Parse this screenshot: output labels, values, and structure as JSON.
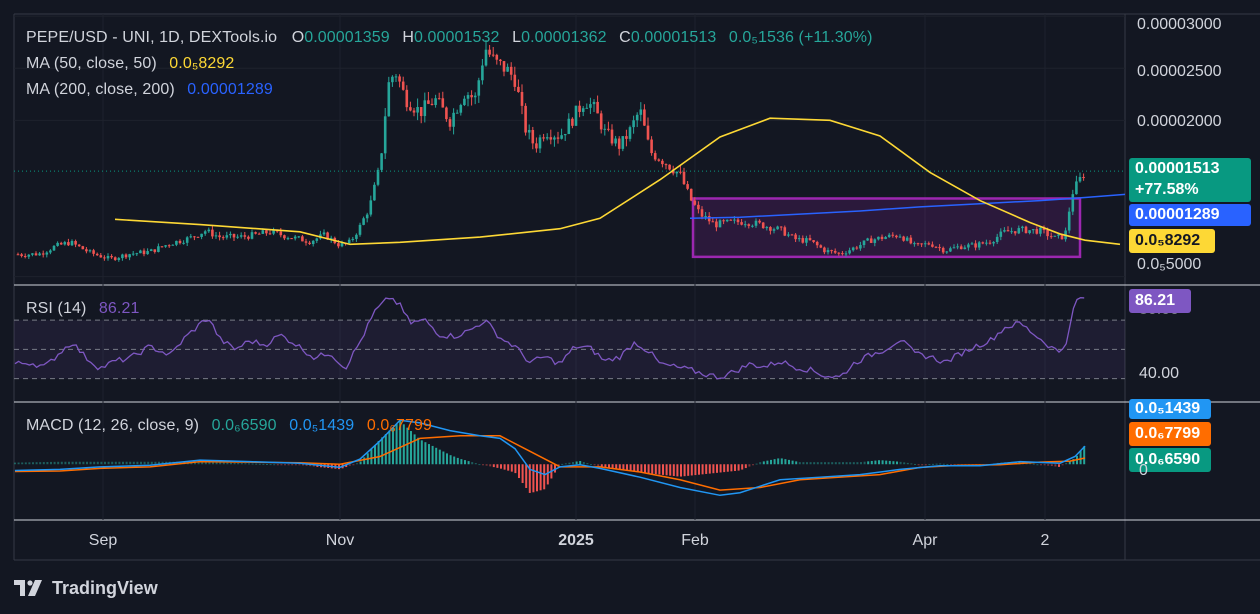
{
  "header": {
    "symbol": "PEPE/USD - UNI, 1D, DEXTools.io",
    "open_label": "O",
    "open": "0.00001359",
    "high_label": "H",
    "high": "0.00001532",
    "low_label": "L",
    "low": "0.00001362",
    "close_label": "C",
    "close": "0.00001513",
    "change": "0.0₅1536 (+11.30%)",
    "ma50_label": "MA (50, close, 50)",
    "ma50_value": "0.0₅8292",
    "ma200_label": "MA (200, close, 200)",
    "ma200_value": "0.00001289"
  },
  "price_axis": {
    "ticks": [
      "0.00003000",
      "0.00002500",
      "0.00002000",
      "0.0₅5000"
    ],
    "last_price": "0.00001513",
    "last_change": "+77.58%",
    "ma200_badge": "0.00001289",
    "ma50_badge": "0.0₅8292"
  },
  "rsi": {
    "label": "RSI (14)",
    "value": "86.21",
    "axis_top": "80.00",
    "axis_low": "40.00",
    "badge": "86.21"
  },
  "macd": {
    "label": "MACD (12, 26, close, 9)",
    "hist": "0.0₆6590",
    "macd": "0.0₅1439",
    "signal": "0.0₆7799",
    "badge_macd": "0.0₅1439",
    "badge_signal": "0.0₆7799",
    "badge_hist": "0.0₆6590",
    "axis_zero": "0"
  },
  "time_axis": {
    "labels": [
      "Sep",
      "Nov",
      "2025",
      "Feb",
      "Apr",
      "2"
    ]
  },
  "footer": {
    "brand": "TradingView"
  },
  "colors": {
    "up": "#26a69a",
    "down": "#ef5350",
    "ma50": "#fdd835",
    "ma200": "#2962ff",
    "rsi": "#7e57c2",
    "macd": "#2196f3",
    "signal": "#ff6d00",
    "box": "#9c27b0",
    "last_price_bg": "#089981",
    "ma200_bg": "#2962ff",
    "ma50_bg": "#fdd835"
  },
  "chart_data": {
    "type": "candlestick",
    "title": "PEPE/USD - UNI, 1D, DEXTools.io",
    "interval": "1D",
    "x_ticks": [
      "Sep",
      "Nov",
      "2025",
      "Feb",
      "Apr",
      "2"
    ],
    "price_range": [
      4.2e-06,
      3.02e-05
    ],
    "ohlc_last": {
      "open": 1.359e-05,
      "high": 1.532e-05,
      "low": 1.362e-05,
      "close": 1.513e-05
    },
    "change_pct": 11.3,
    "price_path": [
      [
        0,
        7.6e-06
      ],
      [
        20,
        7.1e-06
      ],
      [
        40,
        7.2e-06
      ],
      [
        55,
        7.9e-06
      ],
      [
        70,
        8.3e-06
      ],
      [
        90,
        7.3e-06
      ],
      [
        110,
        6.7e-06
      ],
      [
        130,
        7.2e-06
      ],
      [
        150,
        7.4e-06
      ],
      [
        170,
        8.2e-06
      ],
      [
        190,
        8.7e-06
      ],
      [
        205,
        9.4e-06
      ],
      [
        220,
        8.8e-06
      ],
      [
        240,
        8.8e-06
      ],
      [
        255,
        9e-06
      ],
      [
        270,
        9.3e-06
      ],
      [
        290,
        8.8e-06
      ],
      [
        310,
        8.4e-06
      ],
      [
        325,
        9e-06
      ],
      [
        340,
        8e-06
      ],
      [
        350,
        8.3e-06
      ],
      [
        360,
        9.8e-06
      ],
      [
        370,
        1.18e-05
      ],
      [
        380,
        1.56e-05
      ],
      [
        388,
        2.33e-05
      ],
      [
        395,
        2.48e-05
      ],
      [
        405,
        2.22e-05
      ],
      [
        420,
        2.08e-05
      ],
      [
        435,
        2.2e-05
      ],
      [
        450,
        2e-05
      ],
      [
        465,
        2.28e-05
      ],
      [
        475,
        2.2e-05
      ],
      [
        485,
        2.7e-05
      ],
      [
        495,
        2.55e-05
      ],
      [
        505,
        2.5e-05
      ],
      [
        515,
        2.4e-05
      ],
      [
        525,
        1.93e-05
      ],
      [
        535,
        1.75e-05
      ],
      [
        545,
        1.9e-05
      ],
      [
        560,
        1.85e-05
      ],
      [
        570,
        1.98e-05
      ],
      [
        585,
        2.2e-05
      ],
      [
        595,
        2.1e-05
      ],
      [
        605,
        1.88e-05
      ],
      [
        620,
        1.75e-05
      ],
      [
        630,
        1.9e-05
      ],
      [
        640,
        2.1e-05
      ],
      [
        650,
        1.7e-05
      ],
      [
        665,
        1.6e-05
      ],
      [
        680,
        1.48e-05
      ],
      [
        690,
        1.25e-05
      ],
      [
        700,
        1.1e-05
      ],
      [
        715,
        1e-05
      ],
      [
        730,
        1.02e-05
      ],
      [
        745,
        1.03e-05
      ],
      [
        760,
        1e-05
      ],
      [
        780,
        9.5e-06
      ],
      [
        795,
        8.6e-06
      ],
      [
        810,
        8.4e-06
      ],
      [
        825,
        7.5e-06
      ],
      [
        840,
        7.2e-06
      ],
      [
        855,
        7.8e-06
      ],
      [
        870,
        8.5e-06
      ],
      [
        885,
        8.8e-06
      ],
      [
        900,
        9e-06
      ],
      [
        915,
        7.9e-06
      ],
      [
        930,
        8.2e-06
      ],
      [
        945,
        7.5e-06
      ],
      [
        960,
        7.9e-06
      ],
      [
        975,
        8e-06
      ],
      [
        990,
        8.4e-06
      ],
      [
        1005,
        9.3e-06
      ],
      [
        1020,
        9.5e-06
      ],
      [
        1040,
        9.4e-06
      ],
      [
        1055,
        8.7e-06
      ],
      [
        1065,
        8.9e-06
      ],
      [
        1072,
        1.3e-05
      ],
      [
        1078,
        1.4e-05
      ],
      [
        1085,
        1.51e-05
      ]
    ],
    "ma50_path": [
      [
        115,
        1.05e-05
      ],
      [
        200,
        1e-05
      ],
      [
        300,
        9.3e-06
      ],
      [
        350,
        8.1e-06
      ],
      [
        400,
        8.3e-06
      ],
      [
        480,
        8.8e-06
      ],
      [
        560,
        9.6e-06
      ],
      [
        600,
        1.06e-05
      ],
      [
        660,
        1.43e-05
      ],
      [
        720,
        1.84e-05
      ],
      [
        770,
        2.02e-05
      ],
      [
        830,
        2e-05
      ],
      [
        880,
        1.85e-05
      ],
      [
        930,
        1.5e-05
      ],
      [
        980,
        1.23e-05
      ],
      [
        1030,
        1.02e-05
      ],
      [
        1060,
        9.1e-06
      ],
      [
        1085,
        8.5e-06
      ],
      [
        1120,
        8.1e-06
      ]
    ],
    "ma200_path": [
      [
        690,
        1.06e-05
      ],
      [
        740,
        1.07e-05
      ],
      [
        800,
        1.1e-05
      ],
      [
        860,
        1.13e-05
      ],
      [
        920,
        1.17e-05
      ],
      [
        980,
        1.2e-05
      ],
      [
        1040,
        1.23e-05
      ],
      [
        1085,
        1.26e-05
      ],
      [
        1125,
        1.29e-05
      ]
    ],
    "highlight_box": {
      "x_start": 693,
      "x_end": 1080,
      "price_top": 1.25e-05,
      "price_bottom": 6.9e-06
    },
    "rsi": {
      "range": [
        14,
        92
      ],
      "bands": [
        70,
        50,
        30
      ],
      "path": [
        [
          15,
          40
        ],
        [
          30,
          41
        ],
        [
          45,
          38
        ],
        [
          60,
          48
        ],
        [
          72,
          55
        ],
        [
          85,
          45
        ],
        [
          100,
          37
        ],
        [
          115,
          42
        ],
        [
          130,
          44
        ],
        [
          150,
          52
        ],
        [
          170,
          46
        ],
        [
          185,
          58
        ],
        [
          198,
          66
        ],
        [
          208,
          72
        ],
        [
          220,
          57
        ],
        [
          235,
          50
        ],
        [
          250,
          56
        ],
        [
          265,
          53
        ],
        [
          280,
          60
        ],
        [
          295,
          54
        ],
        [
          315,
          44
        ],
        [
          330,
          48
        ],
        [
          345,
          37
        ],
        [
          360,
          55
        ],
        [
          375,
          76
        ],
        [
          390,
          86
        ],
        [
          400,
          80
        ],
        [
          410,
          68
        ],
        [
          425,
          70
        ],
        [
          440,
          60
        ],
        [
          455,
          59
        ],
        [
          470,
          63
        ],
        [
          485,
          70
        ],
        [
          500,
          58
        ],
        [
          515,
          52
        ],
        [
          530,
          41
        ],
        [
          545,
          45
        ],
        [
          560,
          40
        ],
        [
          575,
          52
        ],
        [
          590,
          51
        ],
        [
          605,
          42
        ],
        [
          620,
          45
        ],
        [
          635,
          55
        ],
        [
          650,
          48
        ],
        [
          660,
          40
        ],
        [
          675,
          38
        ],
        [
          690,
          36
        ],
        [
          705,
          33
        ],
        [
          720,
          31
        ],
        [
          735,
          35
        ],
        [
          750,
          40
        ],
        [
          765,
          38
        ],
        [
          780,
          42
        ],
        [
          795,
          38
        ],
        [
          810,
          36
        ],
        [
          825,
          32
        ],
        [
          840,
          31
        ],
        [
          855,
          41
        ],
        [
          870,
          46
        ],
        [
          885,
          50
        ],
        [
          900,
          57
        ],
        [
          915,
          47
        ],
        [
          930,
          45
        ],
        [
          945,
          41
        ],
        [
          960,
          47
        ],
        [
          975,
          52
        ],
        [
          990,
          56
        ],
        [
          1005,
          65
        ],
        [
          1020,
          68
        ],
        [
          1035,
          60
        ],
        [
          1050,
          52
        ],
        [
          1060,
          48
        ],
        [
          1068,
          58
        ],
        [
          1075,
          83
        ],
        [
          1085,
          86
        ]
      ]
    },
    "macd": {
      "range": [
        -1,
        1
      ],
      "macd_path": [
        [
          15,
          -0.12
        ],
        [
          60,
          -0.1
        ],
        [
          100,
          -0.05
        ],
        [
          150,
          -0.02
        ],
        [
          200,
          0.08
        ],
        [
          250,
          0.05
        ],
        [
          300,
          0.02
        ],
        [
          340,
          -0.06
        ],
        [
          360,
          0.1
        ],
        [
          380,
          0.45
        ],
        [
          400,
          0.85
        ],
        [
          420,
          0.8
        ],
        [
          450,
          0.65
        ],
        [
          480,
          0.55
        ],
        [
          500,
          0.5
        ],
        [
          515,
          0.3
        ],
        [
          530,
          -0.1
        ],
        [
          545,
          -0.2
        ],
        [
          560,
          -0.05
        ],
        [
          580,
          -0.01
        ],
        [
          600,
          -0.08
        ],
        [
          640,
          -0.25
        ],
        [
          680,
          -0.45
        ],
        [
          720,
          -0.6
        ],
        [
          740,
          -0.55
        ],
        [
          780,
          -0.3
        ],
        [
          820,
          -0.25
        ],
        [
          860,
          -0.2
        ],
        [
          900,
          -0.1
        ],
        [
          940,
          -0.03
        ],
        [
          980,
          -0.03
        ],
        [
          1020,
          0.05
        ],
        [
          1060,
          0.02
        ],
        [
          1075,
          0.15
        ],
        [
          1085,
          0.35
        ]
      ],
      "signal_path": [
        [
          15,
          -0.14
        ],
        [
          60,
          -0.13
        ],
        [
          100,
          -0.08
        ],
        [
          150,
          -0.05
        ],
        [
          200,
          0.05
        ],
        [
          250,
          0.04
        ],
        [
          300,
          0.03
        ],
        [
          340,
          0.0
        ],
        [
          380,
          0.15
        ],
        [
          420,
          0.5
        ],
        [
          460,
          0.55
        ],
        [
          500,
          0.55
        ],
        [
          530,
          0.25
        ],
        [
          560,
          -0.05
        ],
        [
          600,
          -0.05
        ],
        [
          640,
          -0.15
        ],
        [
          680,
          -0.3
        ],
        [
          720,
          -0.5
        ],
        [
          760,
          -0.45
        ],
        [
          800,
          -0.3
        ],
        [
          840,
          -0.25
        ],
        [
          880,
          -0.2
        ],
        [
          920,
          -0.06
        ],
        [
          960,
          -0.02
        ],
        [
          1000,
          -0.01
        ],
        [
          1040,
          0.04
        ],
        [
          1070,
          0.06
        ],
        [
          1085,
          0.12
        ]
      ]
    }
  }
}
